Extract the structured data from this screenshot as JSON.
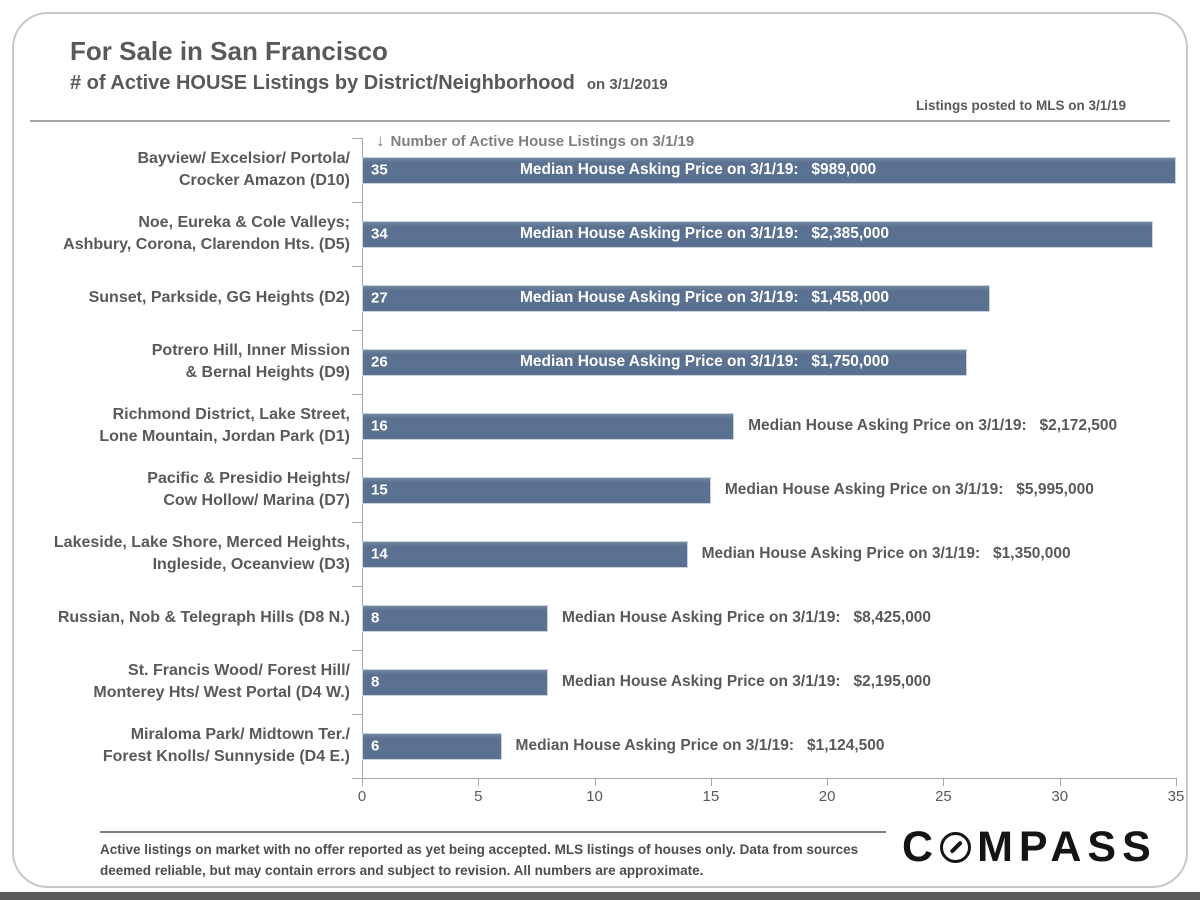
{
  "header": {
    "title": "For Sale in San Francisco",
    "subtitle": "# of Active HOUSE Listings by District/Neighborhood",
    "subtitle_date": "on 3/1/2019",
    "mls_note": "Listings posted to MLS on 3/1/19"
  },
  "chart_data": {
    "type": "bar",
    "orientation": "horizontal",
    "title": "# of Active HOUSE Listings by District/Neighborhood on 3/1/2019",
    "axis_header": "Number of Active House Listings on 3/1/19",
    "arrow_icon": "down-arrow",
    "categories": [
      "Bayview/ Excelsior/ Portola/\nCrocker Amazon (D10)",
      "Noe, Eureka & Cole Valleys;\nAshbury, Corona, Clarendon Hts. (D5)",
      "Sunset, Parkside, GG Heights (D2)",
      "Potrero Hill, Inner Mission\n& Bernal Heights (D9)",
      "Richmond District, Lake Street,\nLone Mountain, Jordan Park (D1)",
      "Pacific & Presidio Heights/\nCow Hollow/ Marina (D7)",
      "Lakeside, Lake Shore, Merced Heights,\nIngleside, Oceanview (D3)",
      "Russian, Nob & Telegraph Hills (D8 N.)",
      "St. Francis Wood/ Forest Hill/\nMonterey Hts/ West Portal (D4 W.)",
      "Miraloma Park/ Midtown Ter./\nForest Knolls/ Sunnyside (D4 E.)"
    ],
    "values": [
      35,
      34,
      27,
      26,
      16,
      15,
      14,
      8,
      8,
      6
    ],
    "bar_annotation_prefix": "Median House Asking Price on 3/1/19:",
    "median_asking_prices": [
      "$989,000",
      "$2,385,000",
      "$1,458,000",
      "$1,750,000",
      "$2,172,500",
      "$5,995,000",
      "$1,350,000",
      "$8,425,000",
      "$2,195,000",
      "$1,124,500"
    ],
    "label_inside": [
      true,
      true,
      true,
      true,
      false,
      false,
      false,
      false,
      false,
      false
    ],
    "xlim": [
      0,
      35
    ],
    "x_ticks": [
      0,
      5,
      10,
      15,
      20,
      25,
      30,
      35
    ],
    "grid": false,
    "legend": "none",
    "bar_color": "#5b7191"
  },
  "footer": {
    "disclaimer": "Active listings on market with no offer reported as yet being accepted. MLS listings of houses only. Data from sources deemed reliable, but may contain errors and subject to revision. All numbers are approximate.",
    "logo_c": "C",
    "logo_rest": "MPASS"
  }
}
